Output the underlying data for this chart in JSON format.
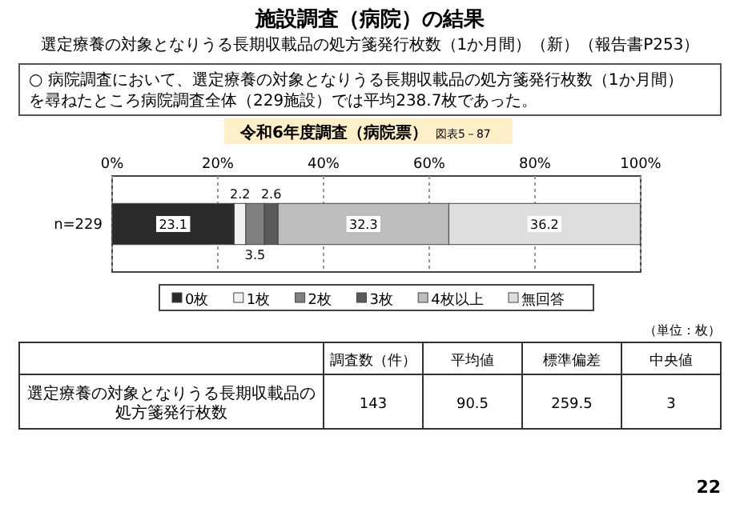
{
  "chart_data": {
    "type": "bar",
    "orientation": "horizontal",
    "stacked": true,
    "title": "施設調査（病院）の結果",
    "subtitle": "選定療養の対象となりうる長期収載品の処方箋発行枚数（1か月間）（新）（報告書P253）",
    "categories": [
      "n=229"
    ],
    "series": [
      {
        "name": "0枚",
        "color": "#2b2b2b",
        "values": [
          23.1
        ]
      },
      {
        "name": "1枚",
        "color": "#f2f2f2",
        "values": [
          2.2
        ]
      },
      {
        "name": "2枚",
        "color": "#808080",
        "values": [
          3.5
        ]
      },
      {
        "name": "3枚",
        "color": "#5a5a5a",
        "values": [
          2.6
        ]
      },
      {
        "name": "4枚以上",
        "color": "#bdbdbd",
        "values": [
          32.3
        ]
      },
      {
        "name": "無回答",
        "color": "#dedede",
        "values": [
          36.2
        ]
      }
    ],
    "xlim": [
      0,
      100
    ],
    "xticks": [
      {
        "value": 0,
        "label": "0%"
      },
      {
        "value": 20,
        "label": "20%"
      },
      {
        "value": 40,
        "label": "40%"
      },
      {
        "value": 60,
        "label": "60%"
      },
      {
        "value": 80,
        "label": "80%"
      },
      {
        "value": 100,
        "label": "100%"
      }
    ],
    "grid": "x",
    "legend": "bottom",
    "data_labels": true,
    "annotations": [
      "○ 病院調査において、選定療養の対象となりうる長期収載品の処方箋発行枚数（1か月間）を尋ねたところ病院調査全体（229施設）では平均238.7枚であった。",
      "令和6年度調査（病院票）",
      "図表5－87",
      "（単位：枚）",
      "選定療養の対象となりうる長期収載品の処方箋発行枚数",
      "調査数（件）",
      "平均値",
      "標準偏差",
      "中央値",
      "143",
      "90.5",
      "259.5",
      "3",
      "22"
    ]
  }
}
